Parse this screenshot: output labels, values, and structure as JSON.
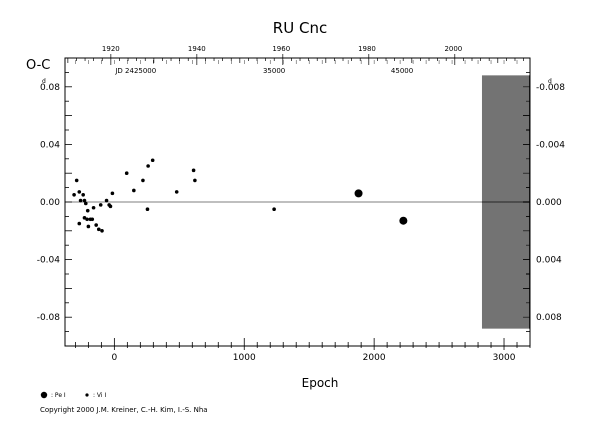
{
  "chart_data": {
    "type": "scatter",
    "title": "RU Cnc",
    "ylabel": "O-C",
    "xlabel": "Epoch",
    "y_unit_superscript": "d",
    "xlim": [
      -380,
      3200
    ],
    "ylim": [
      -0.1,
      0.1
    ],
    "x_ticks": [
      0,
      1000,
      2000,
      3000
    ],
    "y_ticks": [
      -0.08,
      -0.04,
      0.0,
      0.04,
      0.08
    ],
    "x_tick_labels": [
      "0",
      "1000",
      "2000",
      "3000"
    ],
    "y_tick_labels": [
      "-0.08",
      "-0.04",
      "0.00",
      "0.04",
      "0.08"
    ],
    "right_tick_labels": [
      "0.008",
      "0.004",
      "0.000",
      "-0.004",
      "-0.008"
    ],
    "top_years": [
      {
        "label": "1920",
        "epoch": -27
      },
      {
        "label": "1940",
        "epoch": 635
      },
      {
        "label": "1960",
        "epoch": 1285
      },
      {
        "label": "1980",
        "epoch": 1945
      },
      {
        "label": "2000",
        "epoch": 2610
      }
    ],
    "jd_labels": [
      {
        "label": "JD 2425000",
        "epoch": 165
      },
      {
        "label": "35000",
        "epoch": 1230
      },
      {
        "label": "45000",
        "epoch": 2215
      }
    ],
    "hatched_region": [
      2830,
      3200
    ],
    "series": [
      {
        "name": ": Pe I",
        "marker": "large-dot",
        "points": [
          [
            1880,
            0.006
          ],
          [
            2225,
            -0.013
          ]
        ]
      },
      {
        "name": ": Vi I",
        "marker": "small-dot",
        "points": [
          [
            -310,
            0.005
          ],
          [
            -290,
            0.015
          ],
          [
            -270,
            0.007
          ],
          [
            -260,
            0.001
          ],
          [
            -270,
            -0.015
          ],
          [
            -240,
            0.005
          ],
          [
            -230,
            0.001
          ],
          [
            -220,
            -0.001
          ],
          [
            -230,
            -0.011
          ],
          [
            -210,
            -0.012
          ],
          [
            -205,
            -0.006
          ],
          [
            -200,
            -0.017
          ],
          [
            -185,
            -0.012
          ],
          [
            -170,
            -0.012
          ],
          [
            -160,
            -0.004
          ],
          [
            -140,
            -0.016
          ],
          [
            -120,
            -0.019
          ],
          [
            -105,
            -0.002
          ],
          [
            -95,
            -0.02
          ],
          [
            -60,
            0.001
          ],
          [
            -40,
            -0.002
          ],
          [
            -30,
            -0.003
          ],
          [
            -15,
            0.006
          ],
          [
            95,
            0.02
          ],
          [
            150,
            0.008
          ],
          [
            220,
            0.015
          ],
          [
            255,
            -0.005
          ],
          [
            260,
            0.025
          ],
          [
            295,
            0.029
          ],
          [
            480,
            0.007
          ],
          [
            610,
            0.022
          ],
          [
            620,
            0.015
          ],
          [
            1230,
            -0.005
          ]
        ]
      }
    ]
  },
  "copyright": "Copyright 2000 J.M. Kreiner, C.-H. Kim, I.-S. Nha"
}
